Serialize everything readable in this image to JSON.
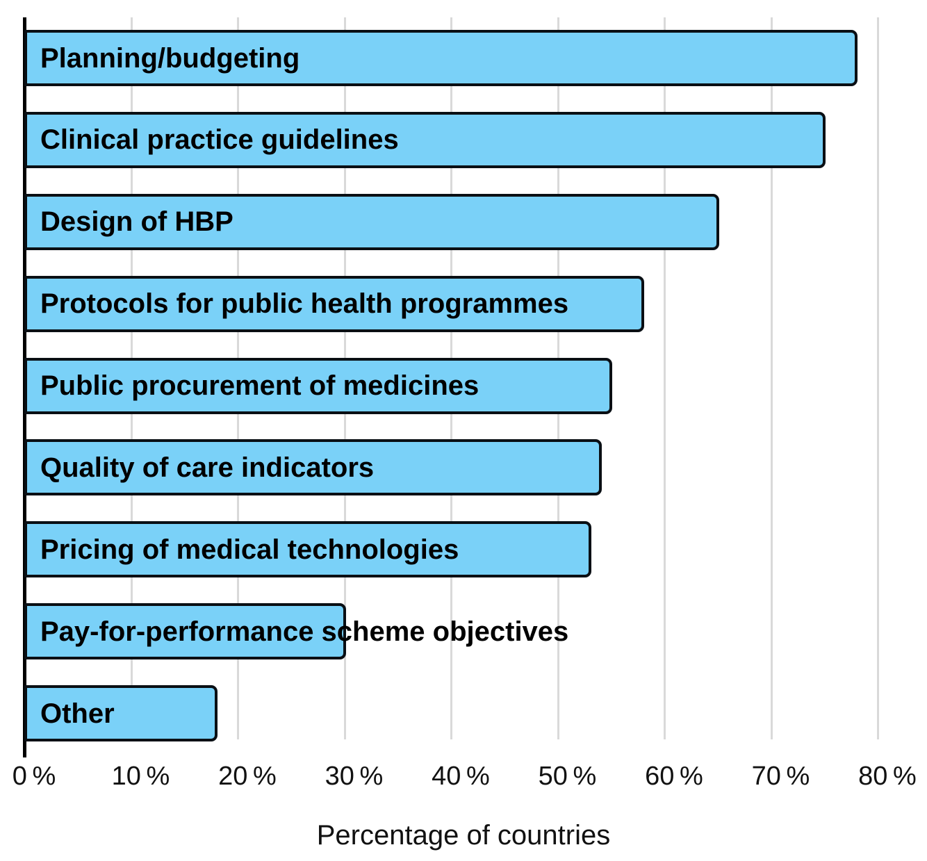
{
  "chart_data": {
    "type": "bar",
    "orientation": "horizontal",
    "title": "",
    "xlabel": "Percentage of countries",
    "ylabel": "",
    "categories": [
      "Planning/budgeting",
      "Clinical practice guidelines",
      "Design of HBP",
      "Protocols for public health programmes",
      "Public procurement of medicines",
      "Quality of care indicators",
      "Pricing of medical technologies",
      "Pay-for-performance scheme objectives",
      "Other"
    ],
    "values": [
      78,
      75,
      65,
      58,
      55,
      54,
      53,
      30,
      18
    ],
    "unit": "%",
    "xlim": [
      0,
      84
    ],
    "xticks": [
      0,
      10,
      20,
      30,
      40,
      50,
      60,
      70,
      80
    ],
    "xtick_labels": [
      "0 %",
      "10 %",
      "20 %",
      "30 %",
      "40 %",
      "50 %",
      "60 %",
      "70 %",
      "80 %"
    ],
    "grid": "vertical-gridlines",
    "legend": "none"
  },
  "colors": {
    "bar_fill": "#7ad1f8",
    "bar_outline": "#0a0f14",
    "gridline": "#d9d9d9",
    "axis": "#000000",
    "background": "#ffffff",
    "text": "#000000"
  }
}
